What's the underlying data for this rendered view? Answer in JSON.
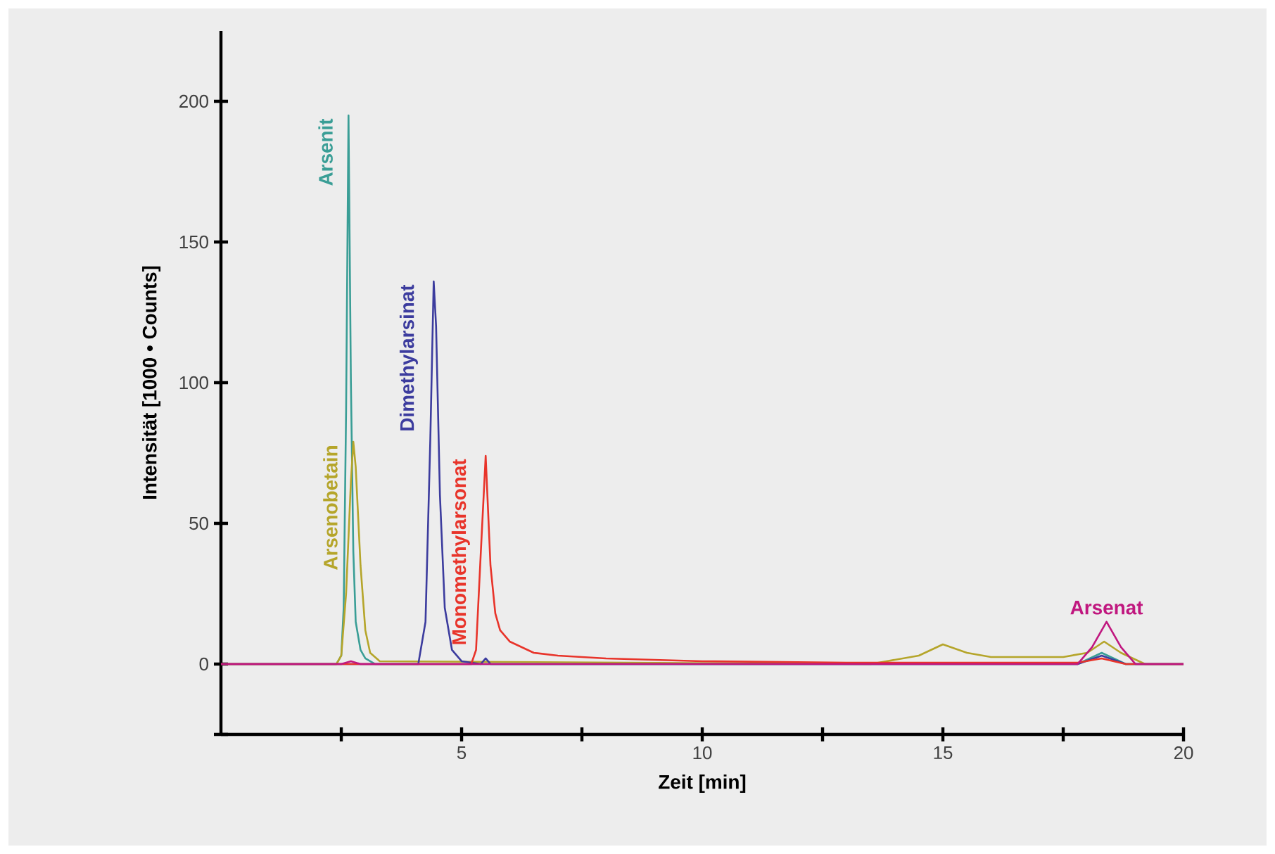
{
  "chart_data": {
    "type": "line",
    "xlabel": "Zeit [min]",
    "ylabel": "Intensität [1000 • Counts]",
    "xlim": [
      0,
      20
    ],
    "ylim": [
      -25,
      225
    ],
    "xticks": [
      {
        "value": 2.5,
        "label": null
      },
      5,
      {
        "value": 7.5,
        "label": null
      },
      10,
      {
        "value": 12.5,
        "label": null
      },
      15,
      {
        "value": 17.5,
        "label": null
      },
      20
    ],
    "yticks": [
      {
        "value": -25,
        "label": null
      },
      0,
      50,
      100,
      150,
      200
    ],
    "grid": false,
    "legend": false,
    "marker": "none",
    "line_style": "solid",
    "series": [
      {
        "name": "Arsenit",
        "color": "#3a9e96",
        "x": [
          0,
          2.4,
          2.5,
          2.55,
          2.6,
          2.65,
          2.7,
          2.75,
          2.8,
          2.9,
          3.0,
          3.2,
          17.8,
          18.3,
          18.8,
          20
        ],
        "values": [
          0,
          0,
          3,
          20,
          90,
          195,
          100,
          40,
          15,
          5,
          2,
          0,
          0,
          4,
          0,
          0
        ]
      },
      {
        "name": "Arsenobetain",
        "color": "#b5a52a",
        "x": [
          0,
          2.4,
          2.5,
          2.6,
          2.7,
          2.75,
          2.8,
          2.9,
          3.0,
          3.1,
          3.3,
          13.5,
          14.5,
          15,
          15.5,
          16,
          17.5,
          18.0,
          18.35,
          18.7,
          19.2,
          20
        ],
        "values": [
          0,
          0,
          3,
          25,
          65,
          79,
          70,
          35,
          12,
          4,
          1,
          0,
          3,
          7,
          4,
          2.5,
          2.5,
          4,
          8,
          4,
          0,
          0
        ]
      },
      {
        "name": "Dimethylarsinat",
        "color": "#3c3c9e",
        "x": [
          0,
          4.1,
          4.25,
          4.35,
          4.42,
          4.47,
          4.55,
          4.65,
          4.8,
          5.0,
          5.4,
          5.5,
          5.6,
          17.8,
          18.3,
          18.8,
          20
        ],
        "values": [
          0,
          0,
          15,
          80,
          136,
          120,
          60,
          20,
          5,
          1,
          0,
          2,
          0,
          0,
          3,
          0,
          0
        ]
      },
      {
        "name": "Monomethylarsonat",
        "color": "#e8342a",
        "x": [
          0,
          5.2,
          5.3,
          5.4,
          5.5,
          5.6,
          5.7,
          5.8,
          6.0,
          6.5,
          7,
          8,
          10,
          13,
          17.8,
          18.3,
          18.8,
          20
        ],
        "values": [
          0,
          0,
          5,
          40,
          74,
          35,
          18,
          12,
          8,
          4,
          3,
          2,
          1,
          0.5,
          0.5,
          2,
          0,
          0
        ]
      },
      {
        "name": "Arsenat",
        "color": "#c0177f",
        "x": [
          0,
          2.5,
          2.7,
          2.9,
          17.8,
          18.1,
          18.4,
          18.7,
          19.0,
          20
        ],
        "values": [
          0,
          0,
          1,
          0,
          0,
          6,
          15,
          6,
          0,
          0
        ]
      }
    ]
  }
}
